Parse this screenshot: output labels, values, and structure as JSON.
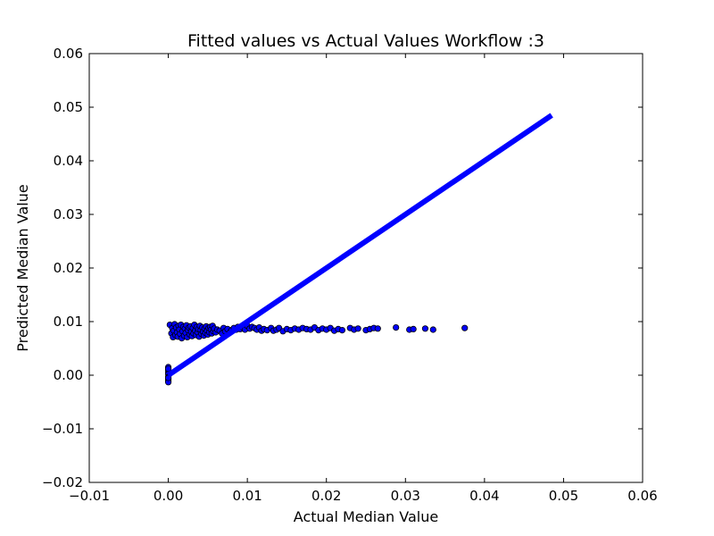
{
  "chart_data": {
    "type": "scatter",
    "title": "Fitted values vs Actual Values Workflow :3",
    "xlabel": "Actual Median Value",
    "ylabel": "Predicted Median Value",
    "xlim": [
      -0.01,
      0.06
    ],
    "ylim": [
      -0.02,
      0.06
    ],
    "xticks": [
      -0.01,
      0.0,
      0.01,
      0.02,
      0.03,
      0.04,
      0.05,
      0.06
    ],
    "xtick_labels": [
      "−0.01",
      "0.00",
      "0.01",
      "0.02",
      "0.03",
      "0.04",
      "0.05",
      "0.06"
    ],
    "yticks": [
      -0.02,
      -0.01,
      0.0,
      0.01,
      0.02,
      0.03,
      0.04,
      0.05,
      0.06
    ],
    "ytick_labels": [
      "−0.02",
      "−0.01",
      "0.00",
      "0.01",
      "0.02",
      "0.03",
      "0.04",
      "0.05",
      "0.06"
    ],
    "grid": false,
    "legend": "none",
    "point_color": "#0000ff",
    "line_color": "#0000ff",
    "fit_line": {
      "x": [
        0.0,
        0.0485
      ],
      "y": [
        0.0,
        0.0485
      ]
    },
    "points": [
      [
        0.0,
        0.0015
      ],
      [
        0.0,
        0.001
      ],
      [
        0.0,
        0.0006
      ],
      [
        0.0,
        0.0002
      ],
      [
        0.0,
        -0.0003
      ],
      [
        0.0,
        -0.0007
      ],
      [
        0.0,
        -0.001
      ],
      [
        0.0,
        -0.0013
      ],
      [
        0.0,
        0.0012
      ],
      [
        0.0,
        -0.0005
      ],
      [
        0.0002,
        0.0094
      ],
      [
        0.0004,
        0.0078
      ],
      [
        0.0005,
        0.0088
      ],
      [
        0.0006,
        0.0071
      ],
      [
        0.0007,
        0.0083
      ],
      [
        0.0008,
        0.0095
      ],
      [
        0.0009,
        0.0075
      ],
      [
        0.001,
        0.0089
      ],
      [
        0.0011,
        0.008
      ],
      [
        0.0012,
        0.0072
      ],
      [
        0.0013,
        0.0092
      ],
      [
        0.0014,
        0.0085
      ],
      [
        0.0015,
        0.0077
      ],
      [
        0.0016,
        0.0094
      ],
      [
        0.0017,
        0.0069
      ],
      [
        0.0018,
        0.0082
      ],
      [
        0.0019,
        0.009
      ],
      [
        0.002,
        0.0074
      ],
      [
        0.0021,
        0.0087
      ],
      [
        0.0022,
        0.0079
      ],
      [
        0.0023,
        0.0093
      ],
      [
        0.0024,
        0.0071
      ],
      [
        0.0025,
        0.0084
      ],
      [
        0.0026,
        0.0089
      ],
      [
        0.0027,
        0.0076
      ],
      [
        0.0028,
        0.0091
      ],
      [
        0.0029,
        0.0081
      ],
      [
        0.003,
        0.0073
      ],
      [
        0.0031,
        0.0088
      ],
      [
        0.0032,
        0.0078
      ],
      [
        0.0033,
        0.0094
      ],
      [
        0.0034,
        0.0083
      ],
      [
        0.0035,
        0.0075
      ],
      [
        0.0036,
        0.009
      ],
      [
        0.0037,
        0.008
      ],
      [
        0.0038,
        0.0086
      ],
      [
        0.0039,
        0.0072
      ],
      [
        0.004,
        0.0092
      ],
      [
        0.0041,
        0.0084
      ],
      [
        0.0042,
        0.0077
      ],
      [
        0.0043,
        0.0089
      ],
      [
        0.0044,
        0.0081
      ],
      [
        0.0045,
        0.0074
      ],
      [
        0.0046,
        0.0087
      ],
      [
        0.0047,
        0.0079
      ],
      [
        0.0048,
        0.0091
      ],
      [
        0.0049,
        0.0083
      ],
      [
        0.005,
        0.0076
      ],
      [
        0.0051,
        0.0088
      ],
      [
        0.0052,
        0.008
      ],
      [
        0.0053,
        0.009
      ],
      [
        0.0054,
        0.0085
      ],
      [
        0.0055,
        0.0078
      ],
      [
        0.0056,
        0.0092
      ],
      [
        0.0057,
        0.0082
      ],
      [
        0.0058,
        0.0087
      ],
      [
        0.006,
        0.008
      ],
      [
        0.0062,
        0.0085
      ],
      [
        0.0065,
        0.0083
      ],
      [
        0.0068,
        0.0078
      ],
      [
        0.007,
        0.0088
      ],
      [
        0.0072,
        0.0082
      ],
      [
        0.0075,
        0.0086
      ],
      [
        0.0078,
        0.008
      ],
      [
        0.008,
        0.0084
      ],
      [
        0.0083,
        0.0088
      ],
      [
        0.0086,
        0.0085
      ],
      [
        0.0088,
        0.009
      ],
      [
        0.0091,
        0.0086
      ],
      [
        0.0094,
        0.0089
      ],
      [
        0.0097,
        0.0085
      ],
      [
        0.01,
        0.0092
      ],
      [
        0.0103,
        0.0087
      ],
      [
        0.0106,
        0.009
      ],
      [
        0.0109,
        0.0088
      ],
      [
        0.0112,
        0.0085
      ],
      [
        0.0115,
        0.0089
      ],
      [
        0.0118,
        0.0083
      ],
      [
        0.0121,
        0.0086
      ],
      [
        0.0125,
        0.0084
      ],
      [
        0.013,
        0.0088
      ],
      [
        0.0133,
        0.0083
      ],
      [
        0.0137,
        0.0085
      ],
      [
        0.014,
        0.0088
      ],
      [
        0.0145,
        0.0082
      ],
      [
        0.015,
        0.0086
      ],
      [
        0.0155,
        0.0084
      ],
      [
        0.016,
        0.0087
      ],
      [
        0.0165,
        0.0085
      ],
      [
        0.017,
        0.0088
      ],
      [
        0.0175,
        0.0086
      ],
      [
        0.018,
        0.0085
      ],
      [
        0.0185,
        0.0089
      ],
      [
        0.019,
        0.0084
      ],
      [
        0.0195,
        0.0087
      ],
      [
        0.02,
        0.0085
      ],
      [
        0.0205,
        0.0088
      ],
      [
        0.021,
        0.0083
      ],
      [
        0.0215,
        0.0086
      ],
      [
        0.022,
        0.0084
      ],
      [
        0.023,
        0.0088
      ],
      [
        0.0235,
        0.0085
      ],
      [
        0.024,
        0.0087
      ],
      [
        0.025,
        0.0084
      ],
      [
        0.0255,
        0.0086
      ],
      [
        0.026,
        0.0088
      ],
      [
        0.0265,
        0.0087
      ],
      [
        0.0288,
        0.0089
      ],
      [
        0.0305,
        0.0085
      ],
      [
        0.031,
        0.0086
      ],
      [
        0.0325,
        0.0087
      ],
      [
        0.0335,
        0.0085
      ],
      [
        0.0375,
        0.0088
      ]
    ]
  }
}
